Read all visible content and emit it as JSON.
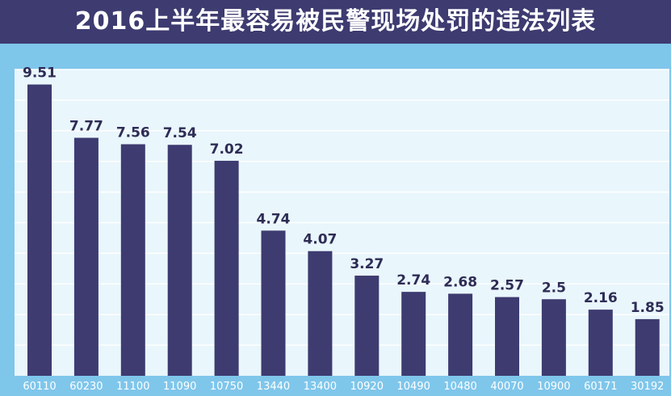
{
  "page": {
    "title": "2016上半年最容易被民警现场处罚的违法列表"
  },
  "colors": {
    "title_bg": "#3d3b70",
    "frame_bg": "#7fc6eb",
    "plot_bg": "#e9f6fc",
    "bar": "#3d3b70",
    "grid": "#ffffff",
    "tick_label": "#ffffff",
    "value_label": "#2e2c55"
  },
  "chart_data": {
    "type": "bar",
    "title": "2016上半年最容易被民警现场处罚的违法列表",
    "xlabel": "",
    "ylabel": "",
    "ylim": [
      0,
      10
    ],
    "grid": true,
    "categories": [
      "60110",
      "60230",
      "11100",
      "11090",
      "10750",
      "13440",
      "13400",
      "10920",
      "10490",
      "10480",
      "40070",
      "10900",
      "60171",
      "30192"
    ],
    "values": [
      9.51,
      7.77,
      7.56,
      7.54,
      7.02,
      4.74,
      4.07,
      3.27,
      2.74,
      2.68,
      2.57,
      2.5,
      2.16,
      1.85
    ],
    "value_labels": [
      "9.51",
      "7.77",
      "7.56",
      "7.54",
      "7.02",
      "4.74",
      "4.07",
      "3.27",
      "2.74",
      "2.68",
      "2.57",
      "2.5",
      "2.16",
      "1.85"
    ]
  }
}
